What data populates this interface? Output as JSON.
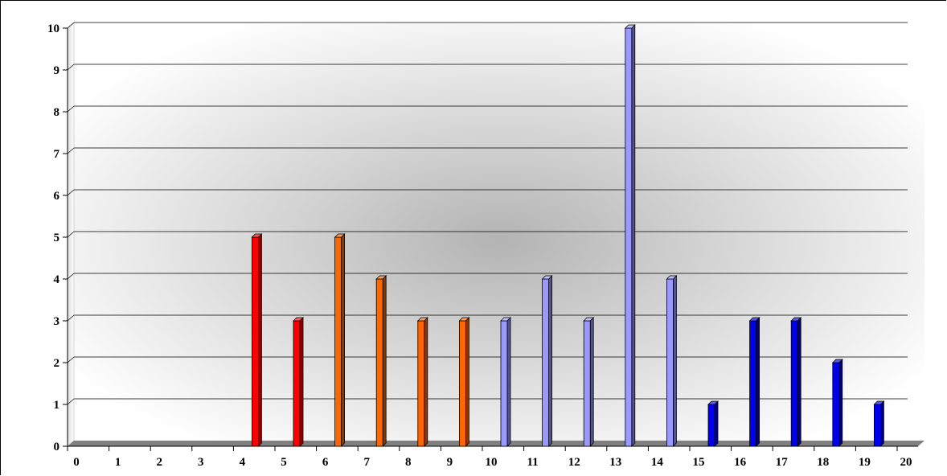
{
  "chart_data": {
    "type": "bar",
    "title": "",
    "xlabel": "",
    "ylabel": "",
    "ylim": [
      0,
      10
    ],
    "xlim": [
      0,
      20
    ],
    "x_ticks": [
      "0",
      "1",
      "2",
      "3",
      "4",
      "5",
      "6",
      "7",
      "8",
      "9",
      "10",
      "11",
      "12",
      "13",
      "14",
      "15",
      "16",
      "17",
      "18",
      "19",
      "20"
    ],
    "y_ticks": [
      "0",
      "1",
      "2",
      "3",
      "4",
      "5",
      "6",
      "7",
      "8",
      "9",
      "10"
    ],
    "grid": true,
    "legend": "none",
    "bars": [
      {
        "x": 4,
        "value": 5,
        "color": "#ff0000"
      },
      {
        "x": 5,
        "value": 3,
        "color": "#ff0000"
      },
      {
        "x": 6,
        "value": 5,
        "color": "#ff6600"
      },
      {
        "x": 7,
        "value": 4,
        "color": "#ff6600"
      },
      {
        "x": 8,
        "value": 3,
        "color": "#ff6600"
      },
      {
        "x": 9,
        "value": 3,
        "color": "#ff6600"
      },
      {
        "x": 10,
        "value": 3,
        "color": "#9999ff"
      },
      {
        "x": 11,
        "value": 4,
        "color": "#9999ff"
      },
      {
        "x": 12,
        "value": 3,
        "color": "#9999ff"
      },
      {
        "x": 13,
        "value": 10,
        "color": "#9999ff"
      },
      {
        "x": 14,
        "value": 4,
        "color": "#9999ff"
      },
      {
        "x": 15,
        "value": 1,
        "color": "#0000ee"
      },
      {
        "x": 16,
        "value": 3,
        "color": "#0000ee"
      },
      {
        "x": 17,
        "value": 3,
        "color": "#0000ee"
      },
      {
        "x": 18,
        "value": 2,
        "color": "#0000ee"
      },
      {
        "x": 19,
        "value": 1,
        "color": "#0000ee"
      }
    ]
  }
}
